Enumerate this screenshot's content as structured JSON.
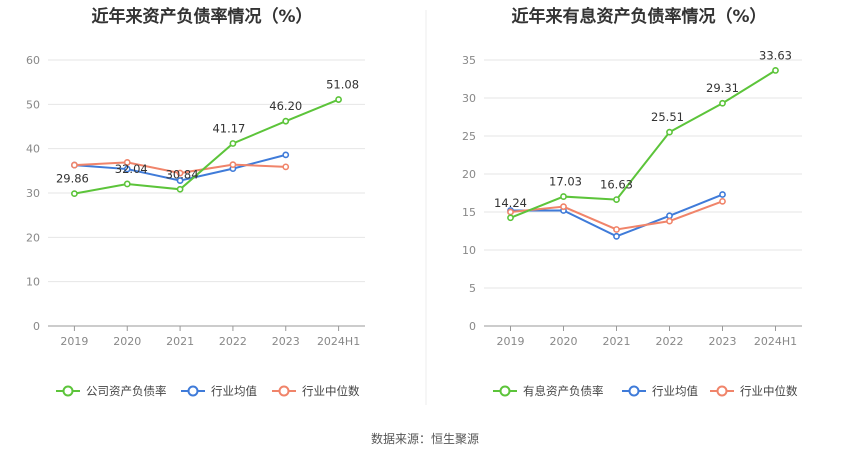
{
  "source_label": "数据来源：恒生聚源",
  "chart_data": [
    {
      "type": "line",
      "title": "近年来资产负债率情况（%）",
      "categories": [
        "2019",
        "2020",
        "2021",
        "2022",
        "2023",
        "2024H1"
      ],
      "ylim": [
        0,
        60
      ],
      "yticks": [
        0,
        10,
        20,
        30,
        40,
        50,
        60
      ],
      "grid": true,
      "legend_position": "bottom",
      "series": [
        {
          "name": "公司资产负债率",
          "color": "#5cc43a",
          "values": [
            29.86,
            32.04,
            30.84,
            41.17,
            46.2,
            51.08
          ],
          "labels": [
            "29.86",
            "32.04",
            "30.84",
            "41.17",
            "46.20",
            "51.08"
          ]
        },
        {
          "name": "行业均值",
          "color": "#3f7bd9",
          "values": [
            36.3,
            35.4,
            32.8,
            35.5,
            38.6,
            null
          ]
        },
        {
          "name": "行业中位数",
          "color": "#f0846a",
          "values": [
            36.3,
            36.9,
            34.5,
            36.4,
            35.9,
            null
          ]
        }
      ]
    },
    {
      "type": "line",
      "title": "近年来有息资产负债率情况（%）",
      "categories": [
        "2019",
        "2020",
        "2021",
        "2022",
        "2023",
        "2024H1"
      ],
      "ylim": [
        0,
        35
      ],
      "yticks": [
        0,
        5,
        10,
        15,
        20,
        25,
        30,
        35
      ],
      "grid": true,
      "legend_position": "bottom",
      "series": [
        {
          "name": "有息资产负债率",
          "color": "#5cc43a",
          "values": [
            14.24,
            17.03,
            16.63,
            25.51,
            29.31,
            33.63
          ],
          "labels": [
            "14.24",
            "17.03",
            "16.63",
            "25.51",
            "29.31",
            "33.63"
          ]
        },
        {
          "name": "行业均值",
          "color": "#3f7bd9",
          "values": [
            15.2,
            15.2,
            11.8,
            14.5,
            17.3,
            null
          ]
        },
        {
          "name": "行业中位数",
          "color": "#f0846a",
          "values": [
            15.0,
            15.7,
            12.7,
            13.8,
            16.4,
            null
          ]
        }
      ]
    }
  ]
}
